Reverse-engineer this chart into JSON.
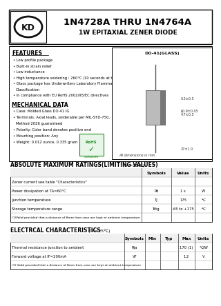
{
  "title_main": "1N4728A THRU 1N4764A",
  "title_sub": "1W EPITAXIAL ZENER DIODE",
  "bg_color": "#ffffff",
  "features_title": "FEATURES",
  "features": [
    "Low profile package",
    "Built-in strain relief",
    "Low inductance",
    "High temperature soldering : 260°C /10 seconds at terminals",
    "Glass package has Underwriters Laboratory Flammability",
    "  Classification",
    "In compliance with EU RoHS 2002/95/EC directives"
  ],
  "mech_title": "MECHANICAL DATA",
  "mech": [
    "Case: Molded Glass DO-41 IG",
    "Terminals: Axial leads, solderable per MIL-STD-750,",
    "  Method 2026 guaranteed",
    "Polarity: Color band denotes positive end",
    "Mounting position: Any",
    "Weight: 0.012 ounce, 0.335 gram"
  ],
  "package_label": "DO-41(GLASS)",
  "abs_title": "ABSOLUTE MAXIMUM RATINGS(LIMITING VALUES)",
  "abs_title2": "(TA=25℃)",
  "abs_headers": [
    "",
    "Symbols",
    "Value",
    "Units"
  ],
  "abs_rows": [
    [
      "Zener current see table \"Characteristics\"",
      "",
      "",
      ""
    ],
    [
      "Power dissipation at TA=60°C",
      "Pd",
      "1 s",
      "W"
    ],
    [
      "Junction temperature",
      "Tj",
      "175",
      "℃"
    ],
    [
      "Storage temperature range",
      "Tstg",
      "-65 to +175",
      "℃"
    ],
    [
      "(1)Valid provided that a distance of 8mm from case are kept at ambient temperature",
      "",
      "",
      ""
    ]
  ],
  "elec_title": "ELECTRCAL CHARACTERISTICS",
  "elec_title2": "(TA=25℃)",
  "elec_headers": [
    "",
    "Symbols",
    "Min",
    "Typ",
    "Max",
    "Units"
  ],
  "elec_rows": [
    [
      "Thermal resistance junction to ambient",
      "Rja",
      "",
      "",
      "170 (1)",
      "℃/W"
    ],
    [
      "Forward voltage at IF=200mA",
      "VF",
      "",
      "",
      "1.2",
      "V"
    ],
    [
      "(1) Valid provided that a distance of 8mm from case are kept at ambient temperature",
      "",
      "",
      "",
      "",
      ""
    ]
  ]
}
